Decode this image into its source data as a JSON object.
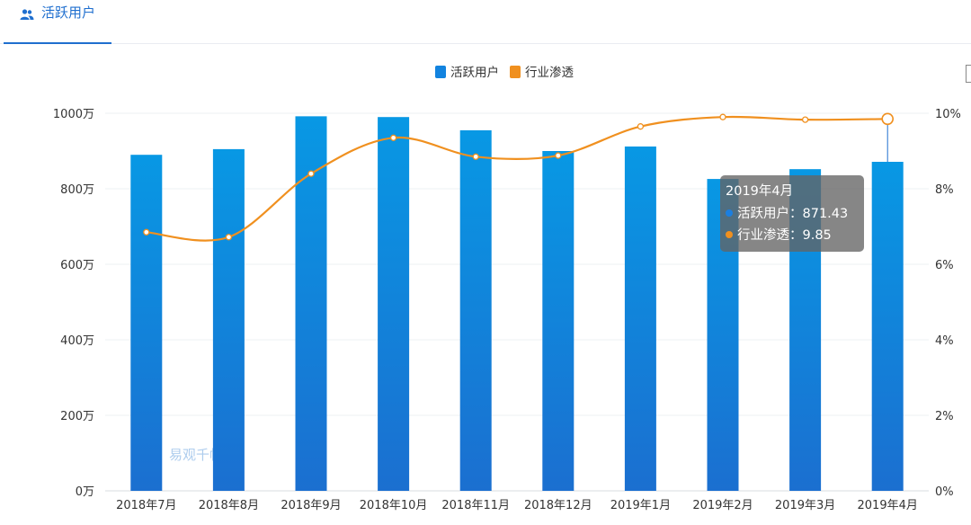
{
  "tab": {
    "label": "活跃用户",
    "icon": "users-icon",
    "accent": "#1f6fcf"
  },
  "colors": {
    "bar_top": "#0898e4",
    "bar_bottom": "#1b6fd0",
    "line": "#f0901f",
    "grid": "#eef0f3",
    "axis_text": "#333333"
  },
  "chart_data": {
    "type": "bar",
    "categories": [
      "2018年7月",
      "2018年8月",
      "2018年9月",
      "2018年10月",
      "2018年11月",
      "2018年12月",
      "2019年1月",
      "2019年2月",
      "2019年3月",
      "2019年4月"
    ],
    "series": [
      {
        "name": "活跃用户",
        "type": "bar",
        "axis": "left",
        "values": [
          890,
          905,
          992,
          990,
          955,
          900,
          912,
          826,
          852,
          871.43
        ]
      },
      {
        "name": "行业渗透",
        "type": "line",
        "axis": "right",
        "values": [
          6.85,
          6.72,
          8.4,
          9.35,
          8.85,
          8.88,
          9.65,
          9.9,
          9.83,
          9.85
        ]
      }
    ],
    "y_left": {
      "ticks": [
        "0万",
        "200万",
        "400万",
        "600万",
        "800万",
        "1000万"
      ],
      "range": [
        0,
        1000
      ]
    },
    "y_right": {
      "ticks": [
        "0%",
        "2%",
        "4%",
        "6%",
        "8%",
        "10%"
      ],
      "range": [
        0,
        10
      ]
    },
    "legend": [
      {
        "name": "活跃用户",
        "color": "#1283df"
      },
      {
        "name": "行业渗透",
        "color": "#f0901f"
      }
    ],
    "legend_position": "top-center",
    "grid": true,
    "tooltip": {
      "title": "2019年4月",
      "rows": [
        {
          "label": "活跃用户：871.43",
          "color": "#1b7fe0"
        },
        {
          "label": "行业渗透：9.85",
          "color": "#f0901f"
        }
      ]
    },
    "watermark": "易观千帆"
  }
}
